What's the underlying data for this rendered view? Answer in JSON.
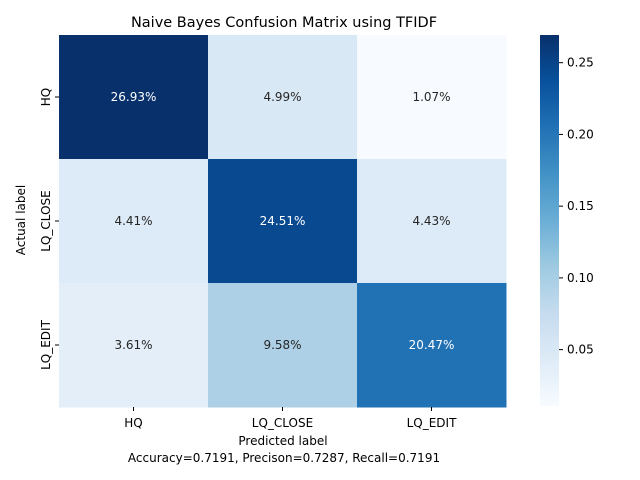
{
  "chart_data": {
    "type": "heatmap",
    "title": "Naive Bayes Confusion Matrix using TFIDF",
    "xlabel": "Predicted label",
    "ylabel": "Actual label",
    "subtitle": "Accuracy=0.7191, Precison=0.7287, Recall=0.7191",
    "x_categories": [
      "HQ",
      "LQ_CLOSE",
      "LQ_EDIT"
    ],
    "y_categories": [
      "HQ",
      "LQ_CLOSE",
      "LQ_EDIT"
    ],
    "values": [
      [
        0.2693,
        0.0499,
        0.0107
      ],
      [
        0.0441,
        0.2451,
        0.0443
      ],
      [
        0.0361,
        0.0958,
        0.2047
      ]
    ],
    "cell_labels": [
      [
        "26.93%",
        "4.99%",
        "1.07%"
      ],
      [
        "4.41%",
        "24.51%",
        "4.43%"
      ],
      [
        "3.61%",
        "9.58%",
        "20.47%"
      ]
    ],
    "colormap": "Blues",
    "colorbar": {
      "range": [
        0.0107,
        0.2693
      ],
      "ticks": [
        0.05,
        0.1,
        0.15,
        0.2,
        0.25
      ],
      "tick_labels": [
        "0.05",
        "0.10",
        "0.15",
        "0.20",
        "0.25"
      ]
    }
  }
}
